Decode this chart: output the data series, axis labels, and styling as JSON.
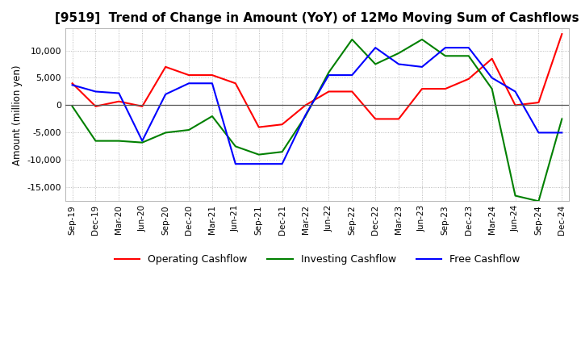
{
  "title": "[9519]  Trend of Change in Amount (YoY) of 12Mo Moving Sum of Cashflows",
  "ylabel": "Amount (million yen)",
  "x_labels": [
    "Sep-19",
    "Dec-19",
    "Mar-20",
    "Jun-20",
    "Sep-20",
    "Dec-20",
    "Mar-21",
    "Jun-21",
    "Sep-21",
    "Dec-21",
    "Mar-22",
    "Jun-22",
    "Sep-22",
    "Dec-22",
    "Mar-23",
    "Jun-23",
    "Sep-23",
    "Dec-23",
    "Mar-24",
    "Jun-24",
    "Sep-24",
    "Dec-24"
  ],
  "operating": [
    4000,
    -200,
    700,
    -200,
    7000,
    5500,
    5500,
    4000,
    -4000,
    -3500,
    0,
    2500,
    2500,
    -2500,
    -2500,
    3000,
    3000,
    4800,
    8500,
    0,
    500,
    13000
  ],
  "investing": [
    -200,
    -6500,
    -6500,
    -6800,
    -5000,
    -4500,
    -2000,
    -7500,
    -9000,
    -8500,
    -2000,
    6000,
    12000,
    7500,
    9500,
    12000,
    9000,
    9000,
    3000,
    -16500,
    -17500,
    -2500
  ],
  "free": [
    3700,
    2500,
    2200,
    -6500,
    2000,
    4000,
    4000,
    -10700,
    -10700,
    -10700,
    -1800,
    5500,
    5500,
    10500,
    7500,
    7000,
    10500,
    10500,
    5000,
    2500,
    -5000,
    -5000
  ],
  "ylim": [
    -17500,
    14000
  ],
  "yticks": [
    -15000,
    -10000,
    -5000,
    0,
    5000,
    10000
  ],
  "operating_color": "#ff0000",
  "investing_color": "#008000",
  "free_color": "#0000ff",
  "background_color": "#ffffff",
  "grid_color": "#aaaaaa",
  "title_fontsize": 11,
  "legend_labels": [
    "Operating Cashflow",
    "Investing Cashflow",
    "Free Cashflow"
  ]
}
